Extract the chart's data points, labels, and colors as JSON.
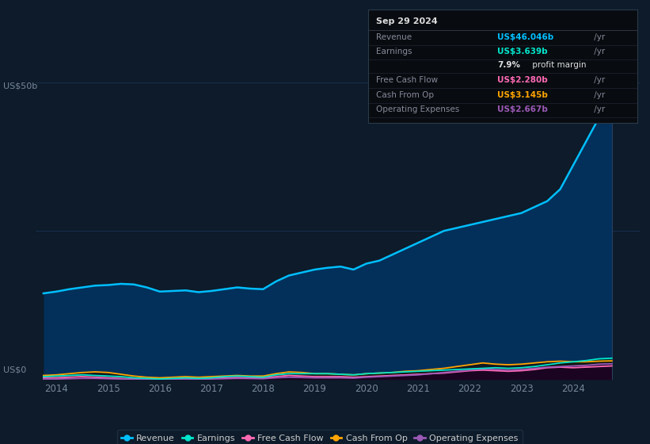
{
  "bg_color": "#0d1b2a",
  "plot_bg_color": "#0d1b2a",
  "ylabel_text": "US$50b",
  "ylabel_zero": "US$0",
  "ylim": [
    0,
    50
  ],
  "xlim": [
    2013.6,
    2025.3
  ],
  "xticks": [
    2014,
    2015,
    2016,
    2017,
    2018,
    2019,
    2020,
    2021,
    2022,
    2023,
    2024
  ],
  "ytick_lines": [
    25,
    50
  ],
  "revenue": {
    "x": [
      2013.75,
      2014.0,
      2014.25,
      2014.5,
      2014.75,
      2015.0,
      2015.25,
      2015.5,
      2015.75,
      2016.0,
      2016.25,
      2016.5,
      2016.75,
      2017.0,
      2017.25,
      2017.5,
      2017.75,
      2018.0,
      2018.25,
      2018.5,
      2018.75,
      2019.0,
      2019.25,
      2019.5,
      2019.75,
      2020.0,
      2020.25,
      2020.5,
      2020.75,
      2021.0,
      2021.25,
      2021.5,
      2021.75,
      2022.0,
      2022.25,
      2022.5,
      2022.75,
      2023.0,
      2023.25,
      2023.5,
      2023.75,
      2024.0,
      2024.25,
      2024.5,
      2024.75
    ],
    "y": [
      14.5,
      14.8,
      15.2,
      15.5,
      15.8,
      15.9,
      16.1,
      16.0,
      15.5,
      14.8,
      14.9,
      15.0,
      14.7,
      14.9,
      15.2,
      15.5,
      15.3,
      15.2,
      16.5,
      17.5,
      18.0,
      18.5,
      18.8,
      19.0,
      18.5,
      19.5,
      20.0,
      21.0,
      22.0,
      23.0,
      24.0,
      25.0,
      25.5,
      26.0,
      26.5,
      27.0,
      27.5,
      28.0,
      29.0,
      30.0,
      32.0,
      36.0,
      40.0,
      44.0,
      46.0
    ],
    "color": "#00bfff",
    "fill_color": "#03305a",
    "label": "Revenue",
    "linewidth": 1.8
  },
  "earnings": {
    "x": [
      2013.75,
      2014.0,
      2014.25,
      2014.5,
      2014.75,
      2015.0,
      2015.25,
      2015.5,
      2015.75,
      2016.0,
      2016.25,
      2016.5,
      2016.75,
      2017.0,
      2017.25,
      2017.5,
      2017.75,
      2018.0,
      2018.25,
      2018.5,
      2018.75,
      2019.0,
      2019.25,
      2019.5,
      2019.75,
      2020.0,
      2020.25,
      2020.5,
      2020.75,
      2021.0,
      2021.25,
      2021.5,
      2021.75,
      2022.0,
      2022.25,
      2022.5,
      2022.75,
      2023.0,
      2023.25,
      2023.5,
      2023.75,
      2024.0,
      2024.25,
      2024.5,
      2024.75
    ],
    "y": [
      0.5,
      0.6,
      0.7,
      0.8,
      0.7,
      0.6,
      0.5,
      0.3,
      0.2,
      0.1,
      0.2,
      0.3,
      0.2,
      0.3,
      0.5,
      0.6,
      0.5,
      0.4,
      0.8,
      1.0,
      1.0,
      1.0,
      1.0,
      0.9,
      0.8,
      1.0,
      1.1,
      1.2,
      1.3,
      1.4,
      1.5,
      1.6,
      1.7,
      1.8,
      1.9,
      2.0,
      1.9,
      2.0,
      2.2,
      2.5,
      2.8,
      3.0,
      3.2,
      3.5,
      3.6
    ],
    "color": "#00e5cc",
    "fill_color": "#003333",
    "label": "Earnings",
    "linewidth": 1.3
  },
  "free_cash_flow": {
    "x": [
      2013.75,
      2014.0,
      2014.25,
      2014.5,
      2014.75,
      2015.0,
      2015.25,
      2015.5,
      2015.75,
      2016.0,
      2016.25,
      2016.5,
      2016.75,
      2017.0,
      2017.25,
      2017.5,
      2017.75,
      2018.0,
      2018.25,
      2018.5,
      2018.75,
      2019.0,
      2019.25,
      2019.5,
      2019.75,
      2020.0,
      2020.25,
      2020.5,
      2020.75,
      2021.0,
      2021.25,
      2021.5,
      2021.75,
      2022.0,
      2022.25,
      2022.5,
      2022.75,
      2023.0,
      2023.25,
      2023.5,
      2023.75,
      2024.0,
      2024.25,
      2024.5,
      2024.75
    ],
    "y": [
      0.3,
      0.3,
      0.4,
      0.5,
      0.4,
      0.3,
      0.2,
      0.1,
      0.05,
      0.05,
      0.1,
      0.2,
      0.15,
      0.2,
      0.3,
      0.35,
      0.3,
      0.3,
      0.5,
      0.7,
      0.6,
      0.5,
      0.5,
      0.5,
      0.4,
      0.5,
      0.6,
      0.7,
      0.8,
      0.9,
      1.0,
      1.1,
      1.3,
      1.5,
      1.6,
      1.5,
      1.4,
      1.5,
      1.7,
      2.0,
      2.1,
      2.0,
      2.1,
      2.2,
      2.3
    ],
    "color": "#ff69b4",
    "fill_color": "#330011",
    "label": "Free Cash Flow",
    "linewidth": 1.3
  },
  "cash_from_op": {
    "x": [
      2013.75,
      2014.0,
      2014.25,
      2014.5,
      2014.75,
      2015.0,
      2015.25,
      2015.5,
      2015.75,
      2016.0,
      2016.25,
      2016.5,
      2016.75,
      2017.0,
      2017.25,
      2017.5,
      2017.75,
      2018.0,
      2018.25,
      2018.5,
      2018.75,
      2019.0,
      2019.25,
      2019.5,
      2019.75,
      2020.0,
      2020.25,
      2020.5,
      2020.75,
      2021.0,
      2021.25,
      2021.5,
      2021.75,
      2022.0,
      2022.25,
      2022.5,
      2022.75,
      2023.0,
      2023.25,
      2023.5,
      2023.75,
      2024.0,
      2024.25,
      2024.5,
      2024.75
    ],
    "y": [
      0.7,
      0.8,
      1.0,
      1.2,
      1.3,
      1.2,
      0.9,
      0.6,
      0.4,
      0.3,
      0.4,
      0.5,
      0.4,
      0.5,
      0.6,
      0.7,
      0.6,
      0.6,
      1.0,
      1.3,
      1.2,
      1.0,
      1.0,
      0.9,
      0.8,
      1.0,
      1.1,
      1.2,
      1.4,
      1.5,
      1.7,
      1.9,
      2.2,
      2.5,
      2.8,
      2.6,
      2.5,
      2.6,
      2.8,
      3.0,
      3.1,
      3.0,
      3.0,
      3.1,
      3.15
    ],
    "color": "#ffa500",
    "fill_color": "#1a0a00",
    "label": "Cash From Op",
    "linewidth": 1.3
  },
  "operating_expenses": {
    "x": [
      2013.75,
      2014.0,
      2014.25,
      2014.5,
      2014.75,
      2015.0,
      2015.25,
      2015.5,
      2015.75,
      2016.0,
      2016.25,
      2016.5,
      2016.75,
      2017.0,
      2017.25,
      2017.5,
      2017.75,
      2018.0,
      2018.25,
      2018.5,
      2018.75,
      2019.0,
      2019.25,
      2019.5,
      2019.75,
      2020.0,
      2020.25,
      2020.5,
      2020.75,
      2021.0,
      2021.25,
      2021.5,
      2021.75,
      2022.0,
      2022.25,
      2022.5,
      2022.75,
      2023.0,
      2023.25,
      2023.5,
      2023.75,
      2024.0,
      2024.25,
      2024.5,
      2024.75
    ],
    "y": [
      0.1,
      0.1,
      0.15,
      0.2,
      0.2,
      0.15,
      0.1,
      0.08,
      0.05,
      0.05,
      0.08,
      0.1,
      0.08,
      0.1,
      0.15,
      0.2,
      0.18,
      0.15,
      0.3,
      0.4,
      0.35,
      0.3,
      0.3,
      0.3,
      0.25,
      0.4,
      0.5,
      0.6,
      0.7,
      0.8,
      1.0,
      1.2,
      1.4,
      1.6,
      1.8,
      1.7,
      1.6,
      1.7,
      1.9,
      2.1,
      2.2,
      2.3,
      2.4,
      2.6,
      2.67
    ],
    "color": "#9b59b6",
    "fill_color": "#1a0033",
    "label": "Operating Expenses",
    "linewidth": 1.3
  },
  "tooltip": {
    "date": "Sep 29 2024",
    "revenue_val": "US$46.046b",
    "revenue_color": "#00bfff",
    "earnings_val": "US$3.639b",
    "earnings_color": "#00e5cc",
    "profit_margin": "7.9%",
    "free_cash_flow_val": "US$2.280b",
    "free_cash_flow_color": "#ff69b4",
    "cash_from_op_val": "US$3.145b",
    "cash_from_op_color": "#ffa500",
    "operating_expenses_val": "US$2.667b",
    "operating_expenses_color": "#9b59b6",
    "box_bg": "#080c10",
    "box_border": "#2a3a4a",
    "text_color": "#888899",
    "white_color": "#dddddd"
  },
  "legend": {
    "revenue_color": "#00bfff",
    "earnings_color": "#00e5cc",
    "free_cash_flow_color": "#ff69b4",
    "cash_from_op_color": "#ffa500",
    "operating_expenses_color": "#9b59b6",
    "bg_color": "#0d1b2a",
    "border_color": "#223344",
    "text_color": "#cccccc"
  },
  "gridline_color": "#1a3050",
  "tick_color": "#778899",
  "vertical_line_x": 2024.75,
  "vertical_line_color": "#2a4060"
}
